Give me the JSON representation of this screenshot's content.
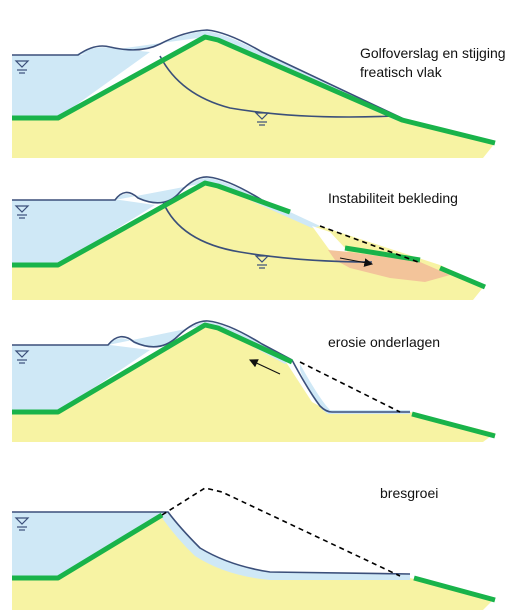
{
  "panels": [
    {
      "caption_lines": [
        "Golfoverslag en stijging",
        "freatisch vlak"
      ]
    },
    {
      "caption_lines": [
        "Instabiliteit bekleding"
      ]
    },
    {
      "caption_lines": [
        "erosie onderlagen"
      ]
    },
    {
      "caption_lines": [
        "bresgroei"
      ]
    }
  ],
  "colors": {
    "sand": "#f7f3a3",
    "water": "#cfe8f6",
    "water_line": "#3b4f7a",
    "revetment": "#19b34a",
    "slide_mass": "#f3c49a",
    "dashed_profile": "#000000"
  }
}
